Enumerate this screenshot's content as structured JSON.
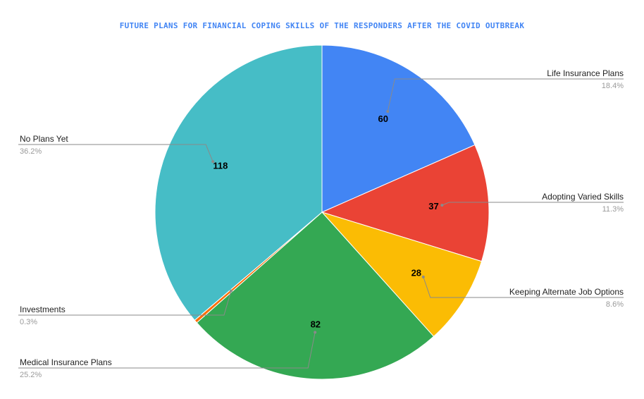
{
  "chart_data": {
    "type": "pie",
    "title": "FUTURE PLANS FOR FINANCIAL COPING SKILLS OF THE RESPONDERS AFTER THE COVID OUTBREAK",
    "legend": "labels with leader lines, no separate legend",
    "slices": [
      {
        "label": "Life Insurance Plans",
        "value": 60,
        "percent": "18.4%",
        "color": "#4285f4",
        "value_label": "60"
      },
      {
        "label": "Adopting Varied Skills",
        "value": 37,
        "percent": "11.3%",
        "color": "#ea4335",
        "value_label": "37"
      },
      {
        "label": "Keeping Alternate Job Options",
        "value": 28,
        "percent": "8.6%",
        "color": "#fbbc04",
        "value_label": "28"
      },
      {
        "label": "Medical Insurance Plans",
        "value": 82,
        "percent": "25.2%",
        "color": "#34a853",
        "value_label": "82"
      },
      {
        "label": "Investments",
        "value": 1,
        "percent": "0.3%",
        "color": "#ff6d01",
        "value_label": ""
      },
      {
        "label": "No Plans Yet",
        "value": 118,
        "percent": "36.2%",
        "color": "#46bdc6",
        "value_label": "118"
      }
    ]
  }
}
